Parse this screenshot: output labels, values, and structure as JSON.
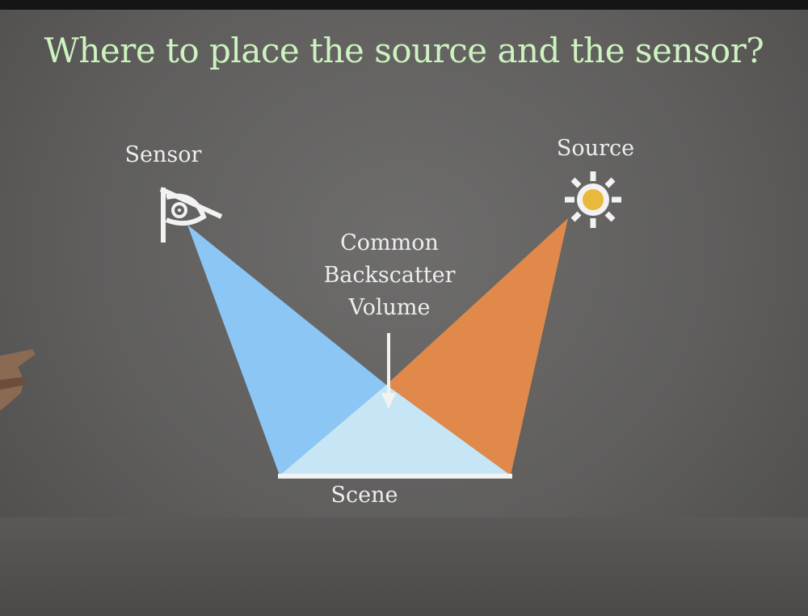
{
  "slide": {
    "title": "Where to place the source and the sensor?",
    "labels": {
      "sensor": "Sensor",
      "source": "Source",
      "common_line1": "Common",
      "common_line2": "Backscatter",
      "common_line3": "Volume",
      "scene": "Scene"
    }
  },
  "colors": {
    "title": "#cdf3bf",
    "sensor_beam": "#8cc6f4",
    "source_beam": "#e0894a",
    "overlap": "#c7e6f5",
    "sun_core": "#e8b93a"
  },
  "icons": [
    "eye-sensor-icon",
    "sun-source-icon",
    "down-arrow-icon"
  ]
}
